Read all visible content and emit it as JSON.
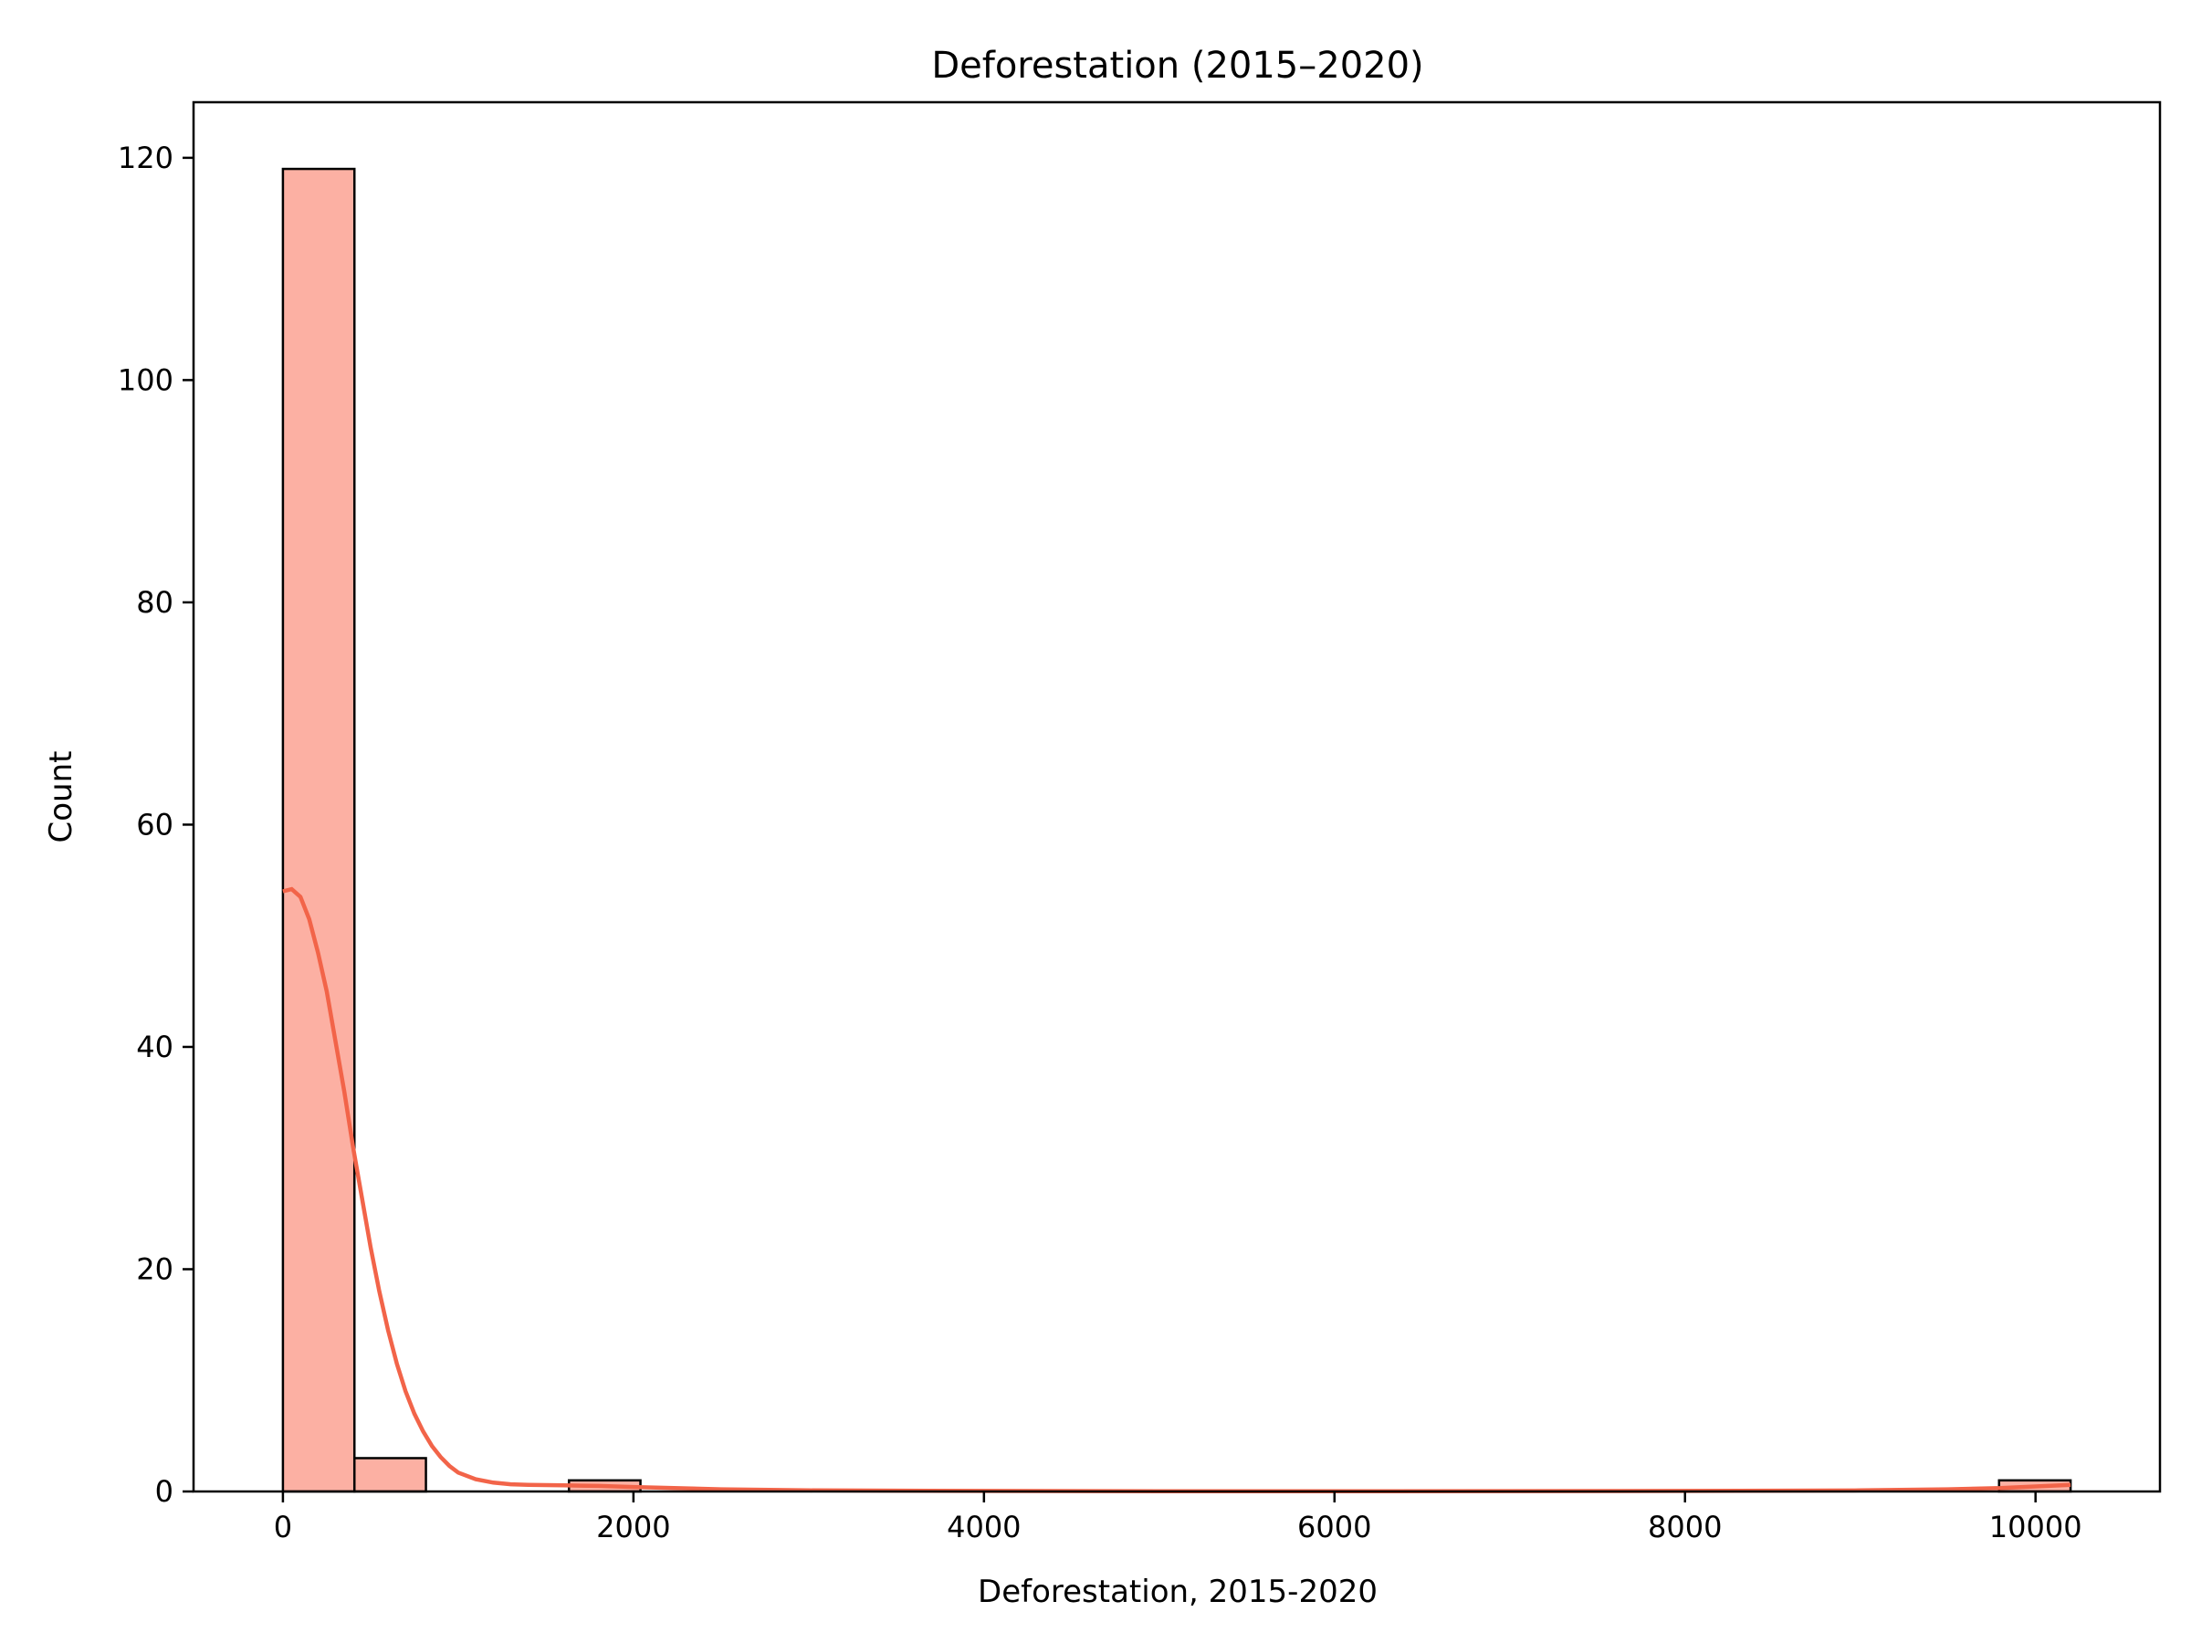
{
  "chart_data": {
    "type": "bar",
    "title": "Deforestation (2015–2020)",
    "xlabel": "Deforestation, 2015-2020",
    "ylabel": "Count",
    "xlim": [
      -510,
      10710
    ],
    "ylim": [
      0,
      125
    ],
    "xticks": [
      0,
      2000,
      4000,
      6000,
      8000,
      10000
    ],
    "yticks": [
      0,
      20,
      40,
      60,
      80,
      100,
      120
    ],
    "grid": false,
    "bar_color": "#fcb0a3",
    "edge_color": "#000000",
    "kde_color": "#f26449",
    "bins": [
      {
        "x0": 0,
        "x1": 408,
        "count": 119
      },
      {
        "x0": 408,
        "x1": 816,
        "count": 3
      },
      {
        "x0": 816,
        "x1": 1224,
        "count": 0
      },
      {
        "x0": 1224,
        "x1": 1632,
        "count": 0
      },
      {
        "x0": 1632,
        "x1": 2040,
        "count": 1
      },
      {
        "x0": 9792,
        "x1": 10200,
        "count": 1
      }
    ],
    "kde": {
      "x": [
        0,
        50,
        100,
        150,
        200,
        250,
        300,
        350,
        400,
        450,
        500,
        550,
        600,
        650,
        700,
        750,
        800,
        850,
        900,
        950,
        1000,
        1100,
        1200,
        1300,
        1400,
        1600,
        1800,
        2000,
        2500,
        3000,
        4000,
        5000,
        6000,
        7000,
        8000,
        9000,
        9500,
        9800,
        10000,
        10200
      ],
      "y": [
        54,
        54.2,
        53.5,
        51.5,
        48.5,
        45,
        40.5,
        36,
        31,
        26.5,
        22,
        18,
        14.5,
        11.5,
        9,
        7,
        5.4,
        4.1,
        3.1,
        2.3,
        1.7,
        1.1,
        0.8,
        0.65,
        0.6,
        0.55,
        0.5,
        0.4,
        0.2,
        0.1,
        0.05,
        0.02,
        0.02,
        0.03,
        0.05,
        0.1,
        0.2,
        0.3,
        0.45,
        0.6
      ]
    }
  }
}
